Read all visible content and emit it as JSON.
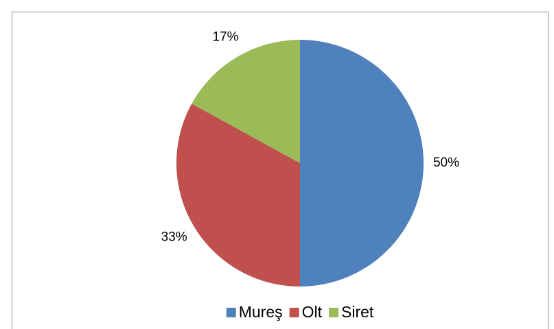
{
  "chart_data": {
    "type": "pie",
    "categories": [
      "Mureş",
      "Olt",
      "Siret"
    ],
    "values": [
      50,
      33,
      17
    ],
    "value_labels": [
      "50%",
      "33%",
      "17%"
    ],
    "colors": [
      "#4f81bd",
      "#c0504d",
      "#9bbb59"
    ],
    "legend": "bottom"
  }
}
